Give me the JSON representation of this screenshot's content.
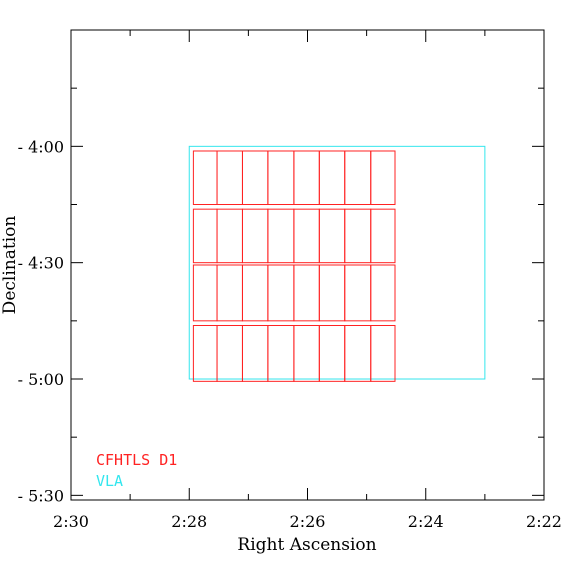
{
  "chart_data": {
    "type": "line",
    "title": "",
    "xlabel": "Right Ascension",
    "ylabel": "Declination",
    "x_tick_labels": [
      "2:30",
      "2:28",
      "2:26",
      "2:24",
      "2:22"
    ],
    "x_tick_values_min": [
      150,
      148,
      146,
      144,
      142
    ],
    "y_tick_labels": [
      "- 4:00",
      "- 4:30",
      "- 5:00",
      "- 5:30"
    ],
    "y_tick_values_deg": [
      -4.0,
      -4.5,
      -5.0,
      -5.5
    ],
    "xlim_ra_min": [
      150,
      142
    ],
    "ylim_dec_deg": [
      -3.5,
      -5.52
    ],
    "grid": false,
    "legend_position": "bottom-left",
    "series": [
      {
        "name": "CFHTLS D1",
        "color": "#ff2222",
        "shape": "rectangles",
        "cols_ra_min": [
          [
            147.93,
            147.53
          ],
          [
            147.53,
            147.1
          ],
          [
            147.1,
            146.67
          ],
          [
            146.67,
            146.23
          ],
          [
            146.23,
            145.8
          ],
          [
            145.8,
            145.37
          ],
          [
            145.37,
            144.93
          ],
          [
            144.93,
            144.52
          ]
        ],
        "rows_dec_deg": [
          [
            -4.02,
            -4.25
          ],
          [
            -4.27,
            -4.5
          ],
          [
            -4.51,
            -4.75
          ],
          [
            -4.77,
            -5.01
          ]
        ]
      },
      {
        "name": "VLA",
        "color": "#33e6ee",
        "shape": "rectangle",
        "ra_min": [
          148.0,
          143.0
        ],
        "dec_deg": [
          -4.0,
          -5.0
        ]
      }
    ]
  }
}
